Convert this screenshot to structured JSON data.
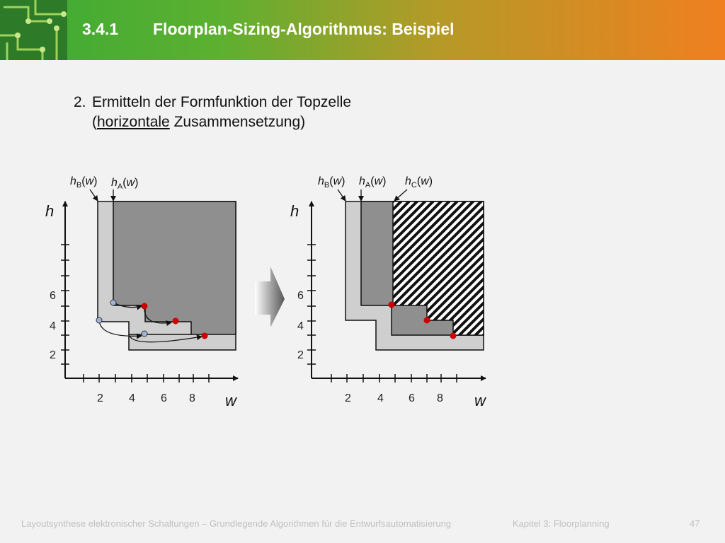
{
  "header": {
    "section_number": "3.4.1",
    "title": "Floorplan-Sizing-Algorithmus: Beispiel"
  },
  "content": {
    "step_number": "2.",
    "line1": "Ermitteln der Formfunktion der Topzelle",
    "line2_open": "(",
    "line2_underlined": "horizontale",
    "line2_rest": " Zusammensetzung)"
  },
  "left_diagram": {
    "y_axis_label": "h",
    "x_axis_label": "w",
    "x_ticks": [
      "2",
      "4",
      "6",
      "8"
    ],
    "y_ticks": [
      "2",
      "4",
      "6"
    ],
    "curve_labels": [
      {
        "var": "h",
        "sub": "B",
        "arg": "w"
      },
      {
        "var": "h",
        "sub": "A",
        "arg": "w"
      }
    ]
  },
  "right_diagram": {
    "y_axis_label": "h",
    "x_axis_label": "w",
    "x_ticks": [
      "2",
      "4",
      "6",
      "8"
    ],
    "y_ticks": [
      "2",
      "4",
      "6"
    ],
    "curve_labels": [
      {
        "var": "h",
        "sub": "B",
        "arg": "w"
      },
      {
        "var": "h",
        "sub": "A",
        "arg": "w"
      },
      {
        "var": "h",
        "sub": "C",
        "arg": "w"
      }
    ]
  },
  "colors": {
    "light_region": "#cfcfcf",
    "dark_region": "#8f8f8f",
    "red_point": "#cc0000",
    "blue_point": "#a0b4d8"
  },
  "footer": {
    "course": "Layoutsynthese elektronischer Schaltungen – Grundlegende Algorithmen für die Entwurfsautomatisierung",
    "chapter": "Kapitel 3: Floorplanning",
    "page": "47"
  }
}
